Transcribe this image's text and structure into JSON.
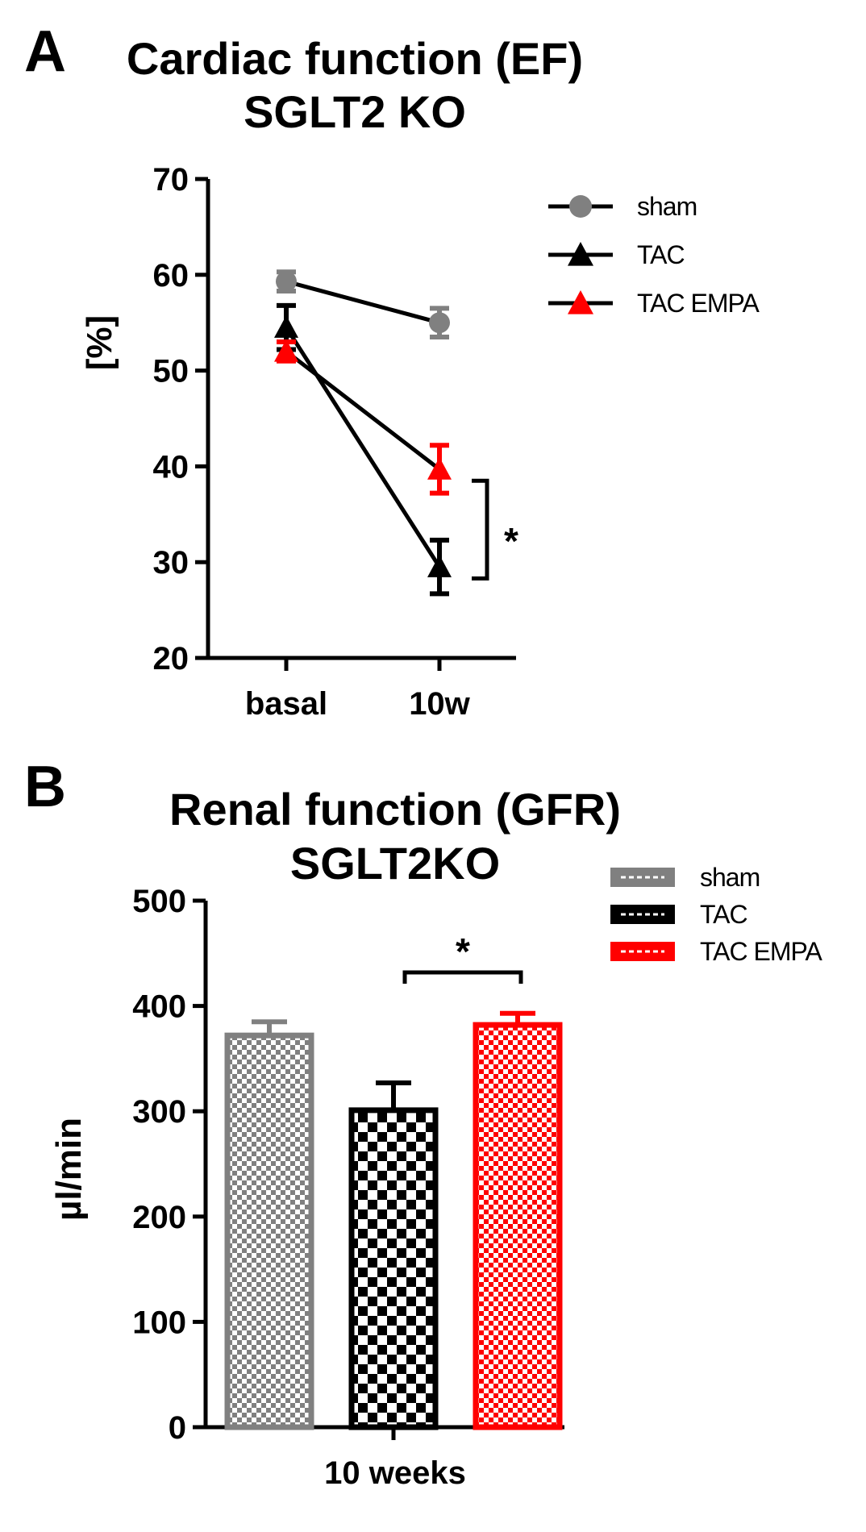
{
  "panels": {
    "a": {
      "letter": "A",
      "title_line1": "Cardiac function (EF)",
      "title_line2": "SGLT2 KO"
    },
    "b": {
      "letter": "B",
      "title_line1": "Renal function (GFR)",
      "title_line2": "SGLT2KO"
    }
  },
  "chart_data": [
    {
      "type": "line",
      "title": "Cardiac function (EF) SGLT2 KO",
      "xlabel": "",
      "ylabel": "[%]",
      "categories": [
        "basal",
        "10w"
      ],
      "ylim": [
        20,
        70
      ],
      "yticks": [
        20,
        30,
        40,
        50,
        60,
        70
      ],
      "grid": false,
      "legend_position": "top-right",
      "series": [
        {
          "name": "sham",
          "color": "#808080",
          "marker": "circle",
          "values": [
            59.3,
            55.0
          ],
          "errors": [
            1.0,
            1.5
          ]
        },
        {
          "name": "TAC",
          "color": "#000000",
          "marker": "triangle",
          "values": [
            54.5,
            29.5
          ],
          "errors": [
            2.3,
            2.8
          ]
        },
        {
          "name": "TAC EMPA",
          "color": "#ff0000",
          "marker": "triangle",
          "values": [
            52.0,
            39.7
          ],
          "errors": [
            1.0,
            2.5
          ]
        }
      ],
      "annotations": [
        {
          "text": "*",
          "between": [
            "TAC",
            "TAC EMPA"
          ],
          "at": "10w"
        }
      ]
    },
    {
      "type": "bar",
      "title": "Renal function (GFR) SGLT2KO",
      "xlabel": "10 weeks",
      "ylabel": "µl/min",
      "categories": [
        "sham",
        "TAC",
        "TAC EMPA"
      ],
      "ylim": [
        0,
        500
      ],
      "yticks": [
        0,
        100,
        200,
        300,
        400,
        500
      ],
      "grid": false,
      "legend_position": "top-right",
      "series": [
        {
          "name": "sham",
          "color": "#808080",
          "value": 372,
          "error": 13
        },
        {
          "name": "TAC",
          "color": "#000000",
          "value": 301,
          "error": 26
        },
        {
          "name": "TAC EMPA",
          "color": "#ff0000",
          "value": 382,
          "error": 11
        }
      ],
      "annotations": [
        {
          "text": "*",
          "between": [
            "TAC",
            "TAC EMPA"
          ]
        }
      ]
    }
  ]
}
